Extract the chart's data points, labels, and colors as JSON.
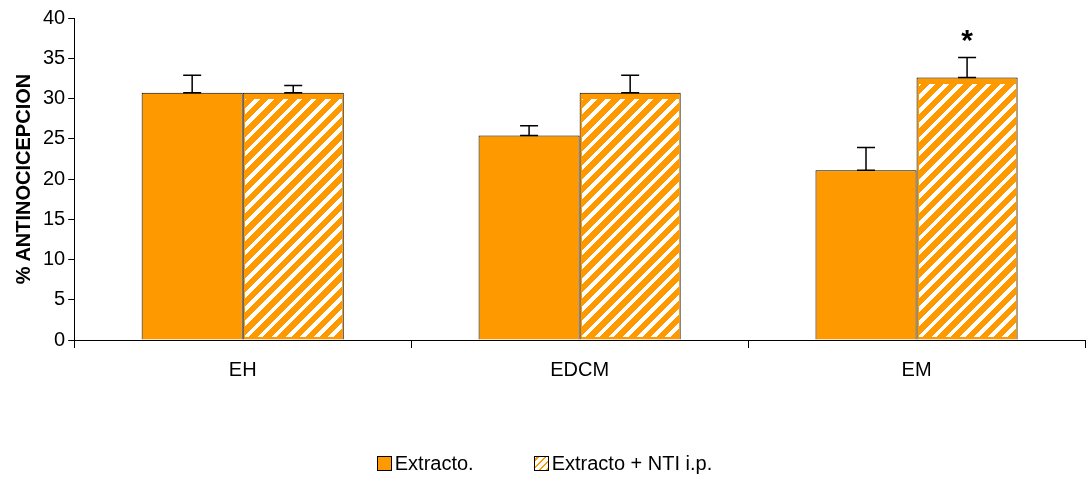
{
  "chart_data": {
    "type": "bar",
    "ylabel": "% ANTINOCICEPCION",
    "categories": [
      "EH",
      "EDCM",
      "EM"
    ],
    "series": [
      {
        "name": "Extracto.",
        "color": "#ff9900",
        "values": [
          30.7,
          25.4,
          21.1
        ],
        "errors": [
          [
            30.7,
            32.9
          ],
          [
            25.4,
            26.6
          ],
          [
            21.1,
            23.9
          ]
        ]
      },
      {
        "name": "Extracto + NTI i.p.",
        "color": "#ff9900",
        "values": [
          30.7,
          30.7,
          32.6
        ],
        "errors": [
          [
            30.7,
            31.6
          ],
          [
            30.7,
            32.9
          ],
          [
            32.6,
            35.1
          ]
        ]
      }
    ],
    "ylim": [
      0,
      40
    ],
    "yticks": [
      0,
      5,
      10,
      15,
      20,
      25,
      30,
      35,
      40
    ],
    "grid": false,
    "legend": "bottom",
    "annotations": [
      {
        "text": "*",
        "x": "EM",
        "y": 32.6
      }
    ]
  }
}
